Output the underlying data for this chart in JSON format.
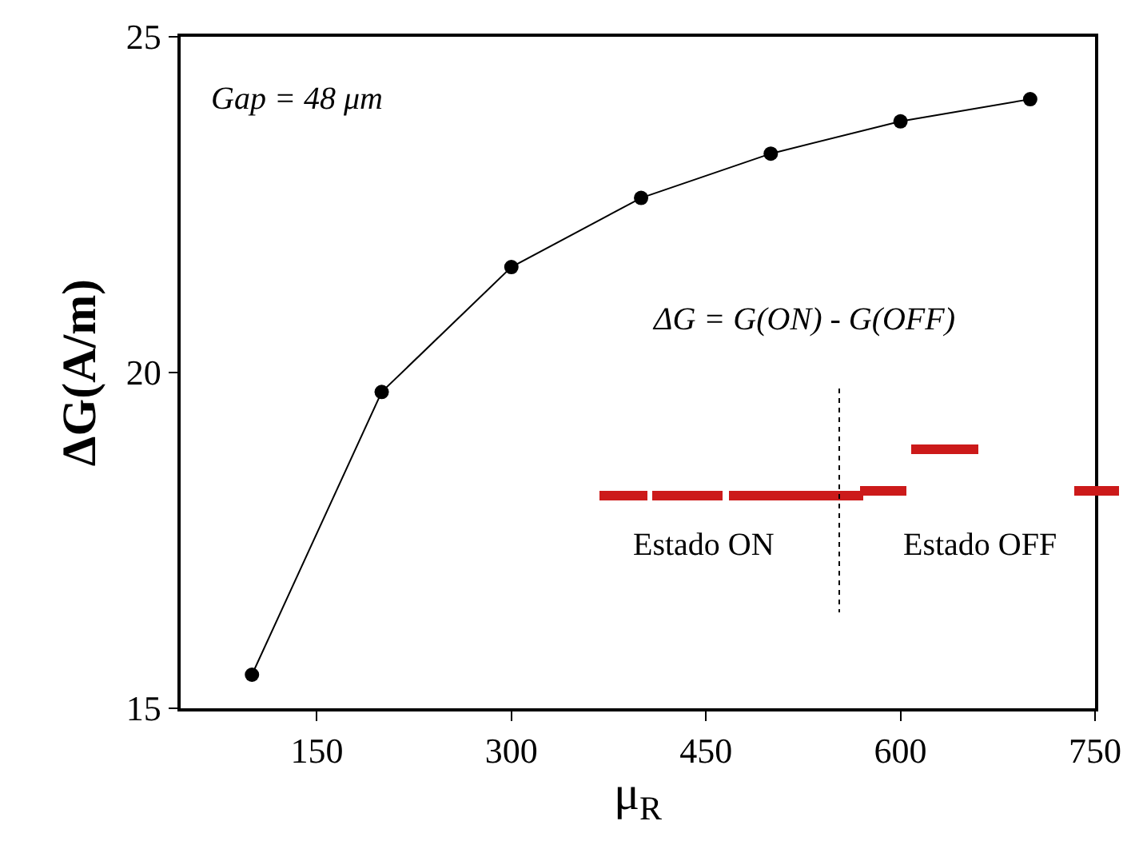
{
  "chart_data": {
    "type": "line",
    "xlabel": "μ$_{R}$",
    "ylabel": "ΔG(A/m)",
    "x": [
      100,
      200,
      300,
      400,
      500,
      600,
      700
    ],
    "series": [
      {
        "color": "#000000",
        "values": [
          15.5,
          19.71,
          21.57,
          22.6,
          23.26,
          23.74,
          24.07
        ]
      }
    ],
    "xlim": [
      45,
      750
    ],
    "xticks": [
      150,
      300,
      450,
      600,
      750
    ],
    "ylim": [
      15,
      25
    ],
    "yticks": [
      15,
      20,
      25
    ],
    "grid": false,
    "marker": "circle",
    "line_style": "solid",
    "annotations": [
      "Gap = 48 μm",
      "ΔG = G(ON) - G(OFF)",
      "Estado ON",
      "Estado OFF"
    ]
  }
}
